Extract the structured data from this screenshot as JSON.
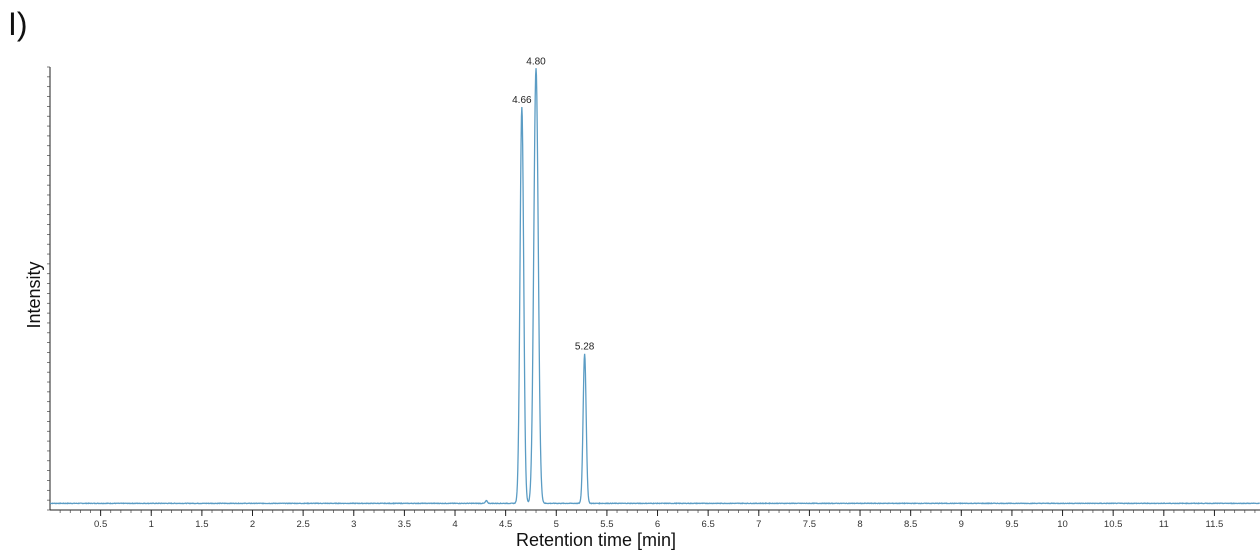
{
  "panel_label": "I)",
  "chart_data": {
    "type": "line",
    "xlabel": "Retention time [min]",
    "ylabel": "Intensity",
    "xlim": [
      0,
      11.95
    ],
    "ylim": [
      0,
      100
    ],
    "x_ticks": [
      0.5,
      1,
      1.5,
      2,
      2.5,
      3,
      3.5,
      4,
      4.5,
      5,
      5.5,
      6,
      6.5,
      7,
      7.5,
      8,
      8.5,
      9,
      9.5,
      10,
      10.5,
      11,
      11.5
    ],
    "x_tick_labels": [
      "0.5",
      "1",
      "1.5",
      "2",
      "2.5",
      "3",
      "3.5",
      "4",
      "4.5",
      "5",
      "5.5",
      "6",
      "6.5",
      "7",
      "7.5",
      "8",
      "8.5",
      "9",
      "9.5",
      "10",
      "10.5",
      "11",
      "11.5"
    ],
    "y_ticks_labeled": false,
    "grid": false,
    "line_color": "#5b9cc4",
    "baseline": 1.5,
    "peaks": [
      {
        "x": 4.66,
        "y": 91.0,
        "label": "4.66"
      },
      {
        "x": 4.8,
        "y": 99.7,
        "label": "4.80"
      },
      {
        "x": 5.28,
        "y": 35.3,
        "label": "5.28"
      }
    ]
  }
}
